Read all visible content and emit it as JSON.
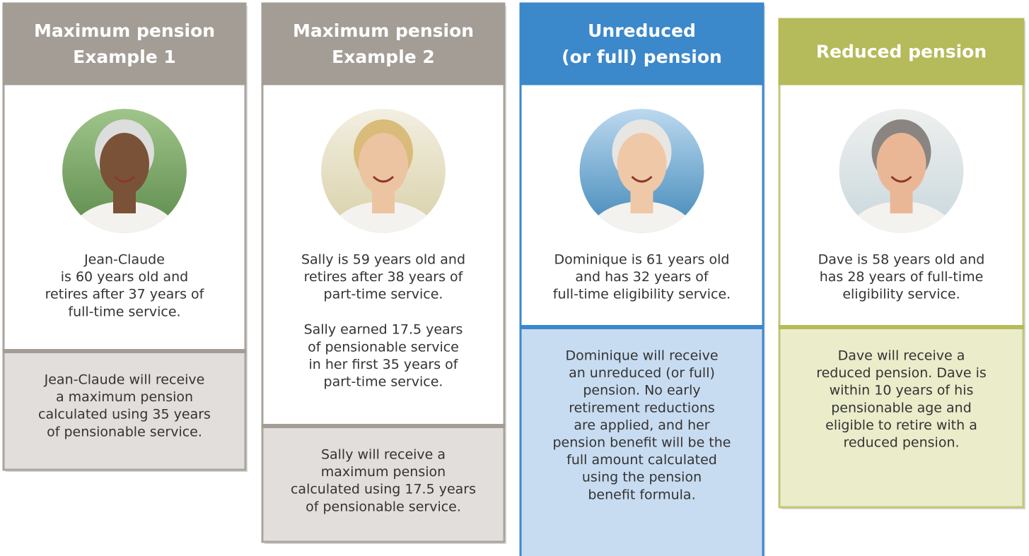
{
  "cards": [
    {
      "header": [
        "Maximum pension",
        "Example 1"
      ],
      "description": [
        [
          "Jean-Claude",
          "is 60 years old and",
          "retires after 37 years of",
          "full-time service."
        ]
      ],
      "result": [
        "Jean-Claude will receive",
        "a maximum pension",
        "calculated using 35 years",
        "of pensionable service."
      ]
    },
    {
      "header": [
        "Maximum pension",
        "Example 2"
      ],
      "description": [
        [
          "Sally is 59 years old and",
          "retires after 38 years of",
          "part-time service."
        ],
        [
          "Sally earned 17.5 years",
          "of pensionable service",
          "in her first 35 years of",
          "part-time service."
        ]
      ],
      "result": [
        "Sally will receive a",
        "maximum pension",
        "calculated using 17.5 years",
        "of pensionable service."
      ]
    },
    {
      "header": [
        "Unreduced",
        "(or full) pension"
      ],
      "description": [
        [
          "Dominique is 61 years old",
          "and has 32 years of",
          "full-time eligibility service."
        ]
      ],
      "result": [
        "Dominique will receive",
        "an unreduced (or full)",
        "pension. No early",
        "retirement reductions",
        "are applied, and her",
        "pension benefit will be the",
        "full amount calculated",
        "using the pension",
        "benefit formula."
      ]
    },
    {
      "header": [
        "Reduced pension"
      ],
      "description": [
        [
          "Dave is 58 years old and",
          "has 28 years of full-time",
          "eligibility service."
        ]
      ],
      "result": [
        "Dave will receive a",
        "reduced pension. Dave is",
        "within 10 years of his",
        "pensionable age and",
        "eligible to retire with a",
        "reduced pension."
      ]
    }
  ]
}
